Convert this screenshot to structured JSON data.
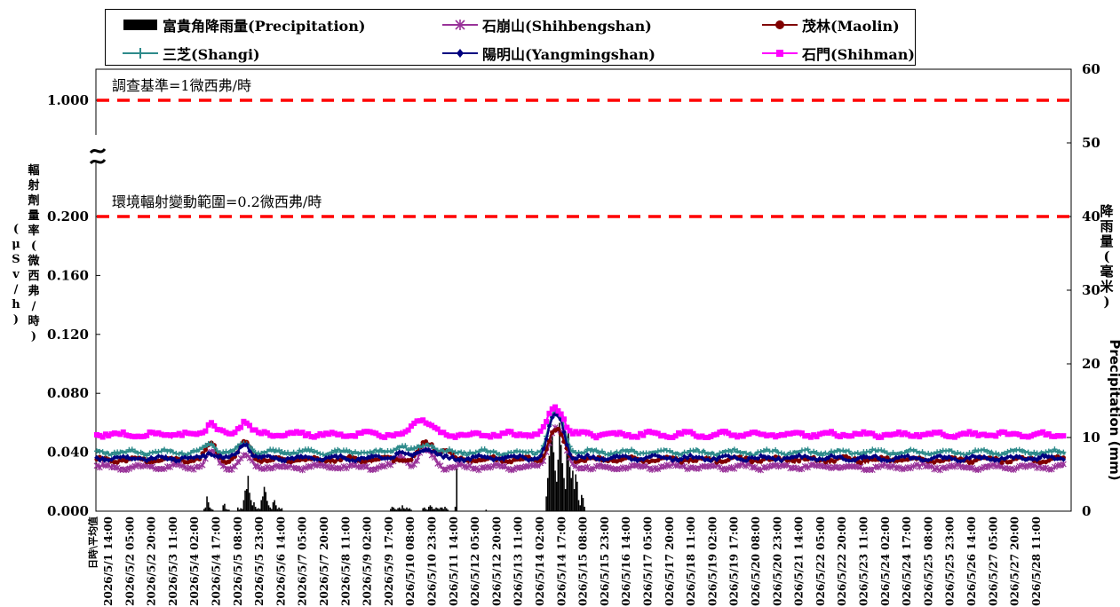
{
  "chart_data": {
    "type": "line",
    "legend_placement": "top",
    "series": [
      {
        "name": "富貴角降雨量(Precipitation)",
        "type": "bar",
        "axis": "right",
        "color": "#000000",
        "marker": "bar",
        "bursts": [
          {
            "start": 73,
            "values": [
              0.3,
              0.5,
              2.0,
              1.2,
              0.5,
              0.3,
              0.2
            ]
          },
          {
            "start": 86,
            "values": [
              0.8,
              1.0,
              0.3,
              0.2,
              0.2
            ]
          },
          {
            "start": 96,
            "values": [
              0.5,
              0.2,
              0.4,
              0.3,
              1.5,
              2.8,
              3.0,
              4.8,
              2.5,
              1.5,
              0.8,
              1.2,
              0.6,
              0.3,
              0.4,
              0.3,
              1.5,
              2.0,
              3.3,
              2.6,
              1.4,
              0.8,
              0.5,
              0.3,
              1.2,
              1.5,
              0.8,
              0.3,
              0.5,
              0.3,
              0.4
            ]
          },
          {
            "start": 200,
            "values": [
              0.3,
              0.6,
              0.5,
              0.3,
              0.2,
              0.4,
              0.5,
              0.3,
              0.8,
              0.4,
              0.3,
              0.5,
              0.3,
              0.4,
              0.2
            ]
          },
          {
            "start": 222,
            "values": [
              0.4,
              0.5,
              0.3,
              0.2,
              0.6,
              0.8,
              0.6,
              0.3,
              0.3,
              0.5,
              0.4,
              0.3,
              0.5,
              0.5,
              0.3,
              0.6,
              0.4,
              0.2
            ]
          },
          {
            "start": 244,
            "values": [
              0.6,
              5.8
            ]
          },
          {
            "start": 265,
            "values": [
              0.2
            ]
          },
          {
            "start": 306,
            "values": [
              2.0,
              4.5,
              7.5,
              9.5,
              10.5,
              8.0,
              5.5,
              4.0,
              7.0,
              12.0,
              9.0,
              6.5,
              4.5,
              3.0,
              8.5,
              11.0,
              6.0,
              4.5,
              5.5,
              3.0,
              5.0,
              4.0,
              1.5,
              0.8,
              2.2,
              1.8,
              0.6
            ]
          }
        ]
      },
      {
        "name": "石崩山(Shihbengshan)",
        "axis": "left",
        "color": "#993399",
        "marker": "asterisk",
        "base": 0.03,
        "events": [
          [
            78,
            0.01
          ],
          [
            101,
            0.008
          ],
          [
            207,
            0.008
          ],
          [
            222,
            0.009
          ],
          [
            228,
            0.006
          ],
          [
            310,
            0.02
          ],
          [
            316,
            0.018
          ]
        ]
      },
      {
        "name": "茂林(Maolin)",
        "axis": "left",
        "color": "#800000",
        "marker": "circle",
        "base": 0.035,
        "events": [
          [
            78,
            0.01
          ],
          [
            101,
            0.012
          ],
          [
            222,
            0.008
          ],
          [
            228,
            0.008
          ],
          [
            237,
            0.006
          ],
          [
            310,
            0.015
          ],
          [
            316,
            0.013
          ]
        ]
      },
      {
        "name": "三芝(Shangi)",
        "axis": "left",
        "color": "#2E8B8B",
        "marker": "plus",
        "base": 0.04,
        "events": [
          [
            78,
            0.006
          ],
          [
            101,
            0.006
          ],
          [
            207,
            0.005
          ],
          [
            222,
            0.004
          ],
          [
            228,
            0.004
          ],
          [
            310,
            0.02
          ],
          [
            316,
            0.018
          ]
        ]
      },
      {
        "name": "陽明山(Yangmingshan)",
        "axis": "left",
        "color": "#000080",
        "marker": "diamond",
        "base": 0.036,
        "events": [
          [
            78,
            0.004
          ],
          [
            101,
            0.01
          ],
          [
            207,
            0.004
          ],
          [
            222,
            0.005
          ],
          [
            228,
            0.004
          ],
          [
            310,
            0.022
          ],
          [
            316,
            0.02
          ]
        ]
      },
      {
        "name": "石門(Shihman)",
        "axis": "left",
        "color": "#FF00FF",
        "marker": "square",
        "base": 0.052,
        "events": [
          [
            78,
            0.008
          ],
          [
            101,
            0.01
          ],
          [
            217,
            0.008
          ],
          [
            222,
            0.006
          ],
          [
            228,
            0.005
          ],
          [
            310,
            0.014
          ],
          [
            316,
            0.012
          ]
        ]
      }
    ],
    "x_first_label": "日時\\平均值",
    "x_tick_labels": [
      "2026/5/1 14:00",
      "2026/5/2 05:00",
      "2026/5/2 20:00",
      "2026/5/3 11:00",
      "2026/5/4 02:00",
      "2026/5/4 17:00",
      "2026/5/5 08:00",
      "2026/5/5 23:00",
      "2026/5/6 14:00",
      "2026/5/7 05:00",
      "2026/5/7 20:00",
      "2026/5/8 11:00",
      "2026/5/9 02:00",
      "2026/5/9 17:00",
      "2026/5/10 08:00",
      "2026/5/10 23:00",
      "2026/5/11 14:00",
      "2026/5/12 05:00",
      "2026/5/12 20:00",
      "2026/5/13 11:00",
      "2026/5/14 02:00",
      "2026/5/14 17:00",
      "2026/5/15 08:00",
      "2026/5/15 23:00",
      "2026/5/16 14:00",
      "2026/5/17 05:00",
      "2026/5/17 20:00",
      "2026/5/18 11:00",
      "2026/5/19 02:00",
      "2026/5/19 17:00",
      "2026/5/20 08:00",
      "2026/5/20 23:00",
      "2026/5/21 14:00",
      "2026/5/22 05:00",
      "2026/5/22 20:00",
      "2026/5/23 11:00",
      "2026/5/24 02:00",
      "2026/5/24 17:00",
      "2026/5/25 08:00",
      "2026/5/25 23:00",
      "2026/5/26 14:00",
      "2026/5/27 05:00",
      "2026/5/27 20:00",
      "2026/5/28 11:00"
    ],
    "x_start": "2026/5/1 00:00",
    "x_step_hours": 1,
    "x_tick_interval_hours": 15,
    "y_left_ticks": [
      "0.000",
      "0.040",
      "0.080",
      "0.120",
      "0.160",
      "0.200",
      "1.000"
    ],
    "y_left_label": "輻射劑量率(μSv/h)(微西弗/時)",
    "y_left_label_col1": [
      "(",
      "μ",
      "S",
      "v",
      "/",
      "h",
      ")"
    ],
    "y_left_label_col2": [
      "輻",
      "射",
      "劑",
      "量",
      "率",
      "(",
      "微",
      "西",
      "弗",
      "/",
      "時",
      ")"
    ],
    "y_left_scale": "broken: 0–0.200 linear, break, 1.000",
    "y_right_ticks": [
      "0",
      "10",
      "20",
      "30",
      "40",
      "50",
      "60"
    ],
    "y_right_range": [
      0,
      60
    ],
    "y_right_label_zh": [
      "降",
      "雨",
      "量",
      "(",
      "毫",
      "米",
      ")"
    ],
    "y_right_label_en": "Precipitation (mm)",
    "reference_lines": [
      {
        "label": "調查基準=1微西弗/時",
        "value": 1.0,
        "color": "#FF0000"
      },
      {
        "label": "環境輻射變動範圍=0.2微西弗/時",
        "value": 0.2,
        "color": "#FF0000"
      }
    ],
    "grid": false
  }
}
